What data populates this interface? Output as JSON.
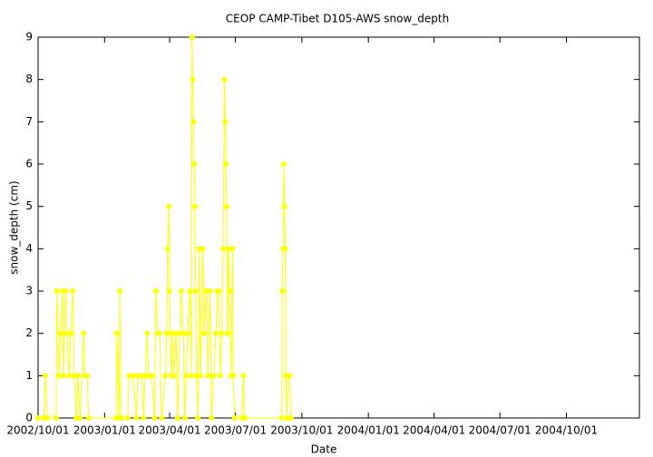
{
  "chart_data": {
    "type": "line",
    "title": "CEOP CAMP-Tibet D105-AWS  snow_depth",
    "x_label": "Date",
    "y_label": "snow_depth (cm)",
    "color": "#ffff00",
    "x": [
      "2002/10/01",
      "2002/10/09",
      "2002/10/11",
      "2002/10/14",
      "2002/10/26",
      "2002/10/27",
      "2002/10/30",
      "2002/11/01",
      "2002/11/04",
      "2002/11/05",
      "2002/11/08",
      "2002/11/10",
      "2002/11/13",
      "2002/11/15",
      "2002/11/18",
      "2002/11/20",
      "2002/11/23",
      "2002/11/25",
      "2002/11/28",
      "2002/12/03",
      "2002/12/05",
      "2002/12/08",
      "2002/12/10",
      "2003/01/17",
      "2003/01/18",
      "2003/01/21",
      "2003/01/22",
      "2003/01/24",
      "2003/02/02",
      "2003/02/04",
      "2003/02/09",
      "2003/02/14",
      "2003/02/16",
      "2003/02/21",
      "2003/02/24",
      "2003/02/26",
      "2003/03/01",
      "2003/03/03",
      "2003/03/07",
      "2003/03/11",
      "2003/03/13",
      "2003/03/16",
      "2003/03/18",
      "2003/03/21",
      "2003/03/26",
      "2003/03/28",
      "2003/03/29",
      "2003/03/31",
      "2003/04/01",
      "2003/04/02",
      "2003/04/03",
      "2003/04/05",
      "2003/04/07",
      "2003/04/10",
      "2003/04/12",
      "2003/04/15",
      "2003/04/17",
      "2003/04/20",
      "2003/04/22",
      "2003/04/24",
      "2003/04/26",
      "2003/04/29",
      "2003/05/01",
      "2003/05/02",
      "2003/05/03",
      "2003/05/04",
      "2003/05/05",
      "2003/05/06",
      "2003/05/07",
      "2003/05/08",
      "2003/05/10",
      "2003/05/12",
      "2003/05/14",
      "2003/05/17",
      "2003/05/19",
      "2003/05/22",
      "2003/05/24",
      "2003/05/27",
      "2003/05/29",
      "2003/06/01",
      "2003/06/04",
      "2003/06/06",
      "2003/06/08",
      "2003/06/10",
      "2003/06/12",
      "2003/06/14",
      "2003/06/16",
      "2003/06/17",
      "2003/06/18",
      "2003/06/19",
      "2003/06/20",
      "2003/06/21",
      "2003/06/23",
      "2003/06/25",
      "2003/06/27",
      "2003/06/28",
      "2003/06/30",
      "2003/07/10",
      "2003/07/12",
      "2003/07/14",
      "2003/09/03",
      "2003/09/04",
      "2003/09/05",
      "2003/09/06",
      "2003/09/07",
      "2003/09/08",
      "2003/09/09",
      "2003/09/10",
      "2003/09/12",
      "2003/09/14",
      "2003/09/16"
    ],
    "values": [
      0,
      0,
      1,
      0,
      0,
      3,
      1,
      2,
      3,
      1,
      3,
      2,
      1,
      2,
      3,
      1,
      0,
      1,
      0,
      2,
      1,
      1,
      0,
      0,
      2,
      0,
      3,
      0,
      0,
      1,
      1,
      0,
      1,
      1,
      0,
      1,
      2,
      1,
      1,
      0,
      3,
      2,
      2,
      0,
      1,
      2,
      4,
      5,
      3,
      2,
      1,
      2,
      1,
      2,
      0,
      2,
      3,
      2,
      0,
      1,
      2,
      3,
      1,
      9,
      8,
      7,
      6,
      5,
      3,
      1,
      0,
      4,
      1,
      4,
      2,
      3,
      1,
      3,
      0,
      1,
      2,
      3,
      3,
      1,
      2,
      4,
      8,
      7,
      6,
      5,
      2,
      4,
      3,
      1,
      4,
      1,
      0,
      0,
      1,
      0,
      0,
      3,
      4,
      6,
      5,
      4,
      1,
      0,
      1,
      1,
      0
    ],
    "xlim": [
      "2002/10/01",
      "2005/01/10"
    ],
    "xticks": [
      "2002/10/01",
      "2003/01/01",
      "2003/04/01",
      "2003/07/01",
      "2003/10/01",
      "2004/01/01",
      "2004/04/01",
      "2004/07/01",
      "2004/10/01"
    ],
    "ylim": [
      0,
      9
    ],
    "yticks": [
      0,
      1,
      2,
      3,
      4,
      5,
      6,
      7,
      8,
      9
    ]
  }
}
